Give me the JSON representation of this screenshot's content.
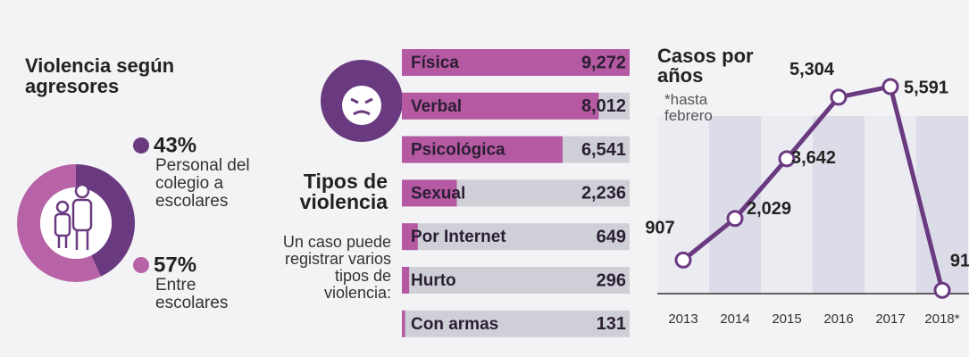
{
  "chart_data": [
    {
      "type": "pie",
      "title": "Violencia según agresores",
      "categories": [
        "Personal del colegio a escolares",
        "Entre escolares"
      ],
      "values": [
        43,
        57
      ],
      "value_labels": [
        "43%",
        "57%"
      ],
      "colors": [
        "#6a3a80",
        "#b863a8"
      ]
    },
    {
      "type": "bar",
      "orientation": "horizontal",
      "title": "Tipos de violencia",
      "subtitle": "Un caso puede registrar varios tipos de violencia:",
      "categories": [
        "Física",
        "Verbal",
        "Psicológica",
        "Sexual",
        "Por Internet",
        "Hurto",
        "Con armas"
      ],
      "values": [
        9272,
        8012,
        6541,
        2236,
        649,
        296,
        131
      ],
      "value_labels": [
        "9,272",
        "8,012",
        "6,541",
        "2,236",
        "649",
        "296",
        "131"
      ],
      "color": "#b55aa2"
    },
    {
      "type": "line",
      "title": "Casos por años",
      "subtitle": "*hasta febrero",
      "categories": [
        "2013",
        "2014",
        "2015",
        "2016",
        "2017",
        "2018*"
      ],
      "values": [
        907,
        2029,
        3642,
        5304,
        5591,
        91
      ],
      "value_labels": [
        "907",
        "2,029",
        "3,642",
        "5,304",
        "5,591",
        "91"
      ],
      "color": "#6a3a80"
    }
  ]
}
